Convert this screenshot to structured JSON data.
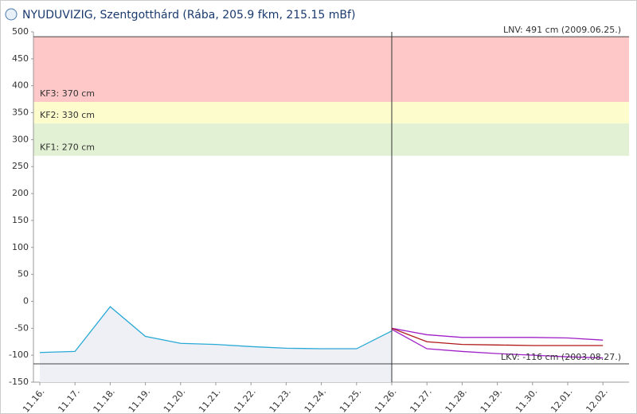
{
  "chart_data": {
    "type": "line",
    "title": "NYUDUVIZIG, Szentgotthárd (Rába, 205.9 fkm, 215.15 mBf)",
    "categories": [
      "11.16.",
      "11.17.",
      "11.18.",
      "11.19.",
      "11.20.",
      "11.21.",
      "11.22.",
      "11.23.",
      "11.24.",
      "11.25.",
      "11.26.",
      "11.27.",
      "11.28.",
      "11.29.",
      "11.30.",
      "12.01.",
      "12.02."
    ],
    "series": [
      {
        "color": "#29a9d6",
        "area": true,
        "values": [
          -95,
          -93,
          -10,
          -65,
          -78,
          -80,
          -84,
          -87,
          -88,
          -88,
          -55,
          null,
          null,
          null,
          null,
          null,
          null
        ]
      },
      {
        "color": "#a020c8",
        "values": [
          null,
          null,
          null,
          null,
          null,
          null,
          null,
          null,
          null,
          null,
          -50,
          -62,
          -67,
          -67,
          -67,
          -68,
          -72
        ]
      },
      {
        "color": "#b01818",
        "values": [
          null,
          null,
          null,
          null,
          null,
          null,
          null,
          null,
          null,
          null,
          -50,
          -75,
          -80,
          -81,
          -82,
          -82,
          -82
        ]
      },
      {
        "color": "#a020c8",
        "values": [
          null,
          null,
          null,
          null,
          null,
          null,
          null,
          null,
          null,
          null,
          -52,
          -88,
          -93,
          -97,
          -100,
          -103,
          -105
        ]
      }
    ],
    "bands": [
      {
        "label": "KF1: 270 cm",
        "value": 270,
        "color": "#e2f0d3"
      },
      {
        "label": "KF2: 330 cm",
        "value": 330,
        "color": "#fcfccc"
      },
      {
        "label": "KF3: 370 cm",
        "value": 370,
        "color": "#ffc8c8"
      }
    ],
    "limits": [
      {
        "label": "LNV: 491 cm (2009.06.25.)",
        "value": 491
      },
      {
        "label": "LKV: -116 cm (2003.08.27.)",
        "value": -116
      }
    ],
    "now_index": 10,
    "ylim": [
      -150,
      500
    ],
    "yticks": [
      -150,
      -100,
      -50,
      0,
      50,
      100,
      150,
      200,
      250,
      300,
      350,
      400,
      450,
      500
    ],
    "grid": false
  }
}
